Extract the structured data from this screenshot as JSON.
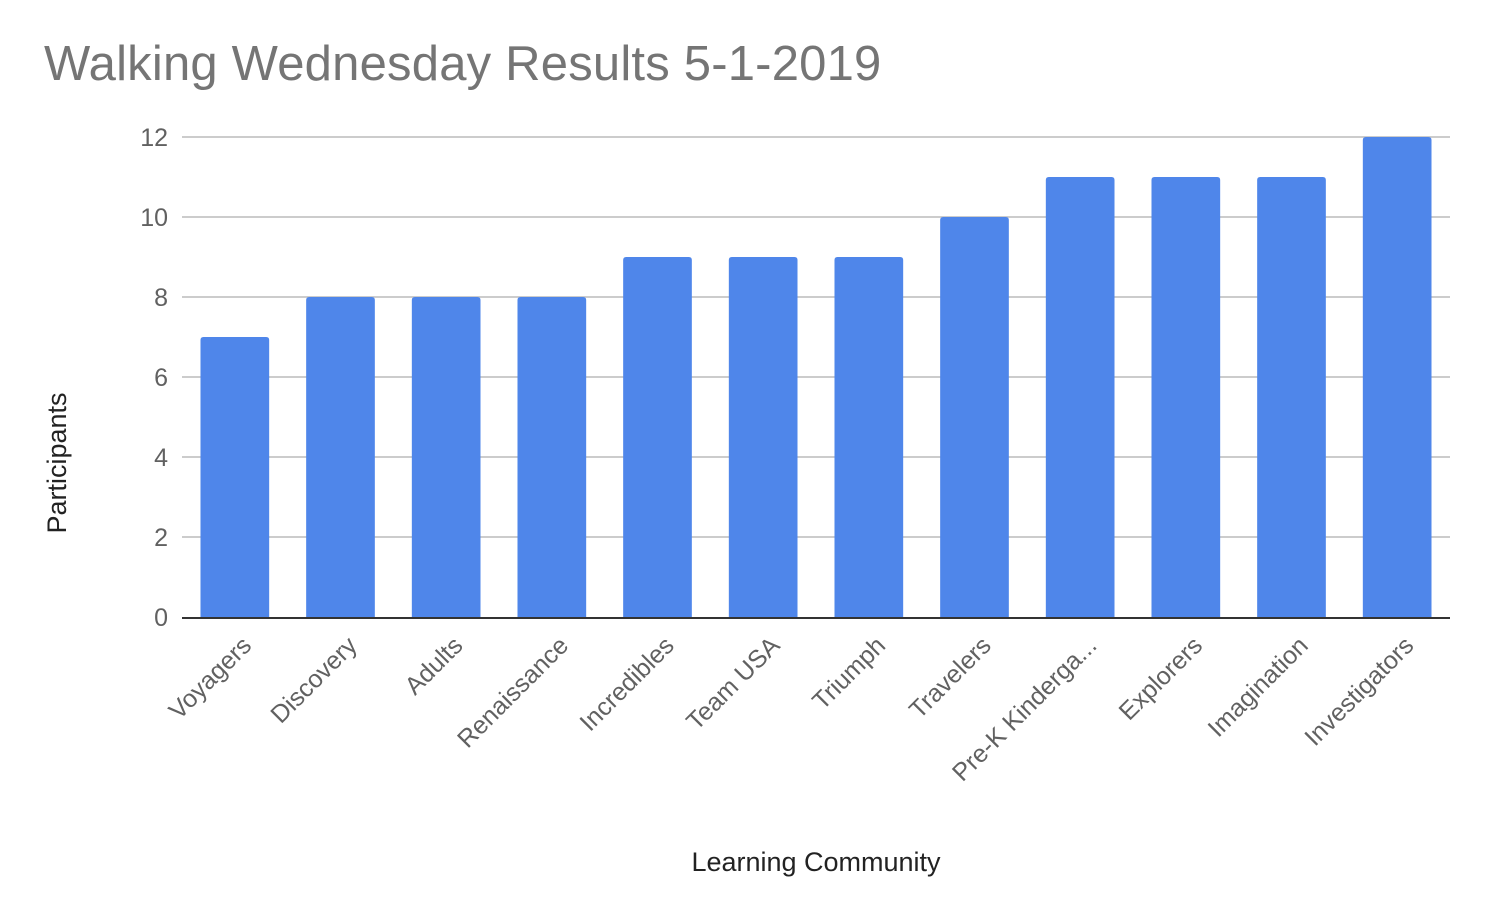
{
  "chart_data": {
    "type": "bar",
    "title": "Walking Wednesday Results 5-1-2019",
    "xlabel": "Learning Community",
    "ylabel": "Participants",
    "categories": [
      "Voyagers",
      "Discovery",
      "Adults",
      "Renaissance",
      "Incredibles",
      "Team USA",
      "Triumph",
      "Travelers",
      "Pre-K Kinderga...",
      "Explorers",
      "Imagination",
      "Investigators"
    ],
    "values": [
      7,
      8,
      8,
      8,
      9,
      9,
      9,
      10,
      11,
      11,
      11,
      12
    ],
    "ylim": [
      0,
      12
    ],
    "yticks": [
      0,
      2,
      4,
      6,
      8,
      10,
      12
    ],
    "grid": true,
    "legend": "none",
    "colors": {
      "bar": "#4f86ea",
      "grid": "#cccccc",
      "axis": "#333333"
    }
  }
}
